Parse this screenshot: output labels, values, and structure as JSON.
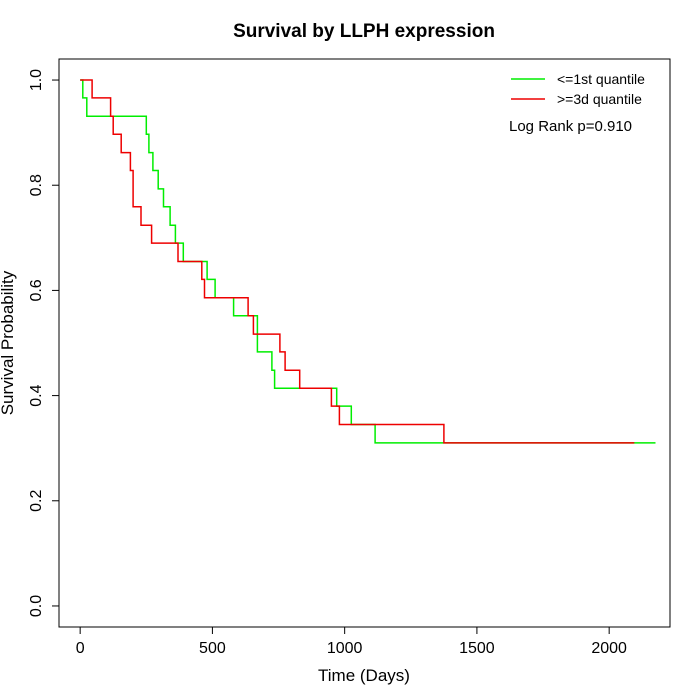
{
  "chart_data": {
    "type": "line",
    "title": "Survival by LLPH expression",
    "xlabel": "Time (Days)",
    "ylabel": "Survival Probability",
    "xlim": [
      -80,
      2230
    ],
    "ylim": [
      -0.04,
      1.04
    ],
    "x_ticks": [
      0,
      500,
      1000,
      1500,
      2000
    ],
    "x_tick_labels": [
      "0",
      "500",
      "1000",
      "1500",
      "2000"
    ],
    "y_ticks": [
      0.0,
      0.2,
      0.4,
      0.6,
      0.8,
      1.0
    ],
    "y_tick_labels": [
      "0.0",
      "0.2",
      "0.4",
      "0.6",
      "0.8",
      "1.0"
    ],
    "grid": false,
    "legend_position": "top-right",
    "annotation": "Log Rank p=0.910",
    "series": [
      {
        "name": "<=1st quantile",
        "color": "#00ee00",
        "step": true,
        "x": [
          0,
          10,
          25,
          245,
          250,
          260,
          275,
          295,
          315,
          340,
          360,
          390,
          470,
          480,
          510,
          580,
          640,
          670,
          725,
          735,
          800,
          970,
          1025,
          1115,
          2175
        ],
        "y": [
          1.0,
          0.966,
          0.931,
          0.931,
          0.897,
          0.862,
          0.828,
          0.793,
          0.759,
          0.724,
          0.69,
          0.655,
          0.655,
          0.621,
          0.586,
          0.552,
          0.552,
          0.483,
          0.448,
          0.414,
          0.414,
          0.38,
          0.345,
          0.31,
          0.31
        ]
      },
      {
        "name": ">=3d quantile",
        "color": "#ee0000",
        "step": true,
        "x": [
          0,
          45,
          115,
          125,
          155,
          190,
          200,
          230,
          270,
          370,
          460,
          470,
          635,
          655,
          670,
          755,
          775,
          830,
          950,
          960,
          980,
          1375,
          2095
        ],
        "y": [
          1.0,
          0.966,
          0.931,
          0.897,
          0.862,
          0.828,
          0.759,
          0.724,
          0.69,
          0.655,
          0.621,
          0.586,
          0.552,
          0.517,
          0.517,
          0.483,
          0.448,
          0.414,
          0.38,
          0.38,
          0.345,
          0.31,
          0.31
        ]
      }
    ]
  }
}
